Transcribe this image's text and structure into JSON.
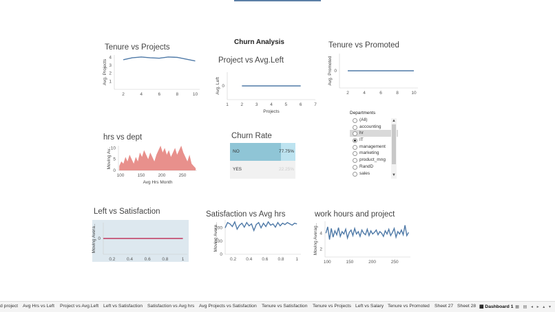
{
  "dashboard_title": "Churn Analysis",
  "sheets": [
    {
      "id": "tenure_projects",
      "title": "Tenure vs Projects"
    },
    {
      "id": "project_avgleft",
      "title": "Project vs Avg.Left"
    },
    {
      "id": "tenure_promoted",
      "title": "Tenure vs Promoted"
    },
    {
      "id": "hrs_dept",
      "title": "hrs vs dept"
    },
    {
      "id": "churn_rate",
      "title": "Churn Rate"
    },
    {
      "id": "left_satisfaction",
      "title": "Left vs Satisfaction"
    },
    {
      "id": "satisfaction_avghrs",
      "title": "Satisfaction vs Avg hrs"
    },
    {
      "id": "work_hours_project",
      "title": "work hours and project"
    }
  ],
  "churn_table": {
    "rows": [
      {
        "label": "NO",
        "value": "77.75%",
        "fraction": 0.7775
      },
      {
        "label": "YES",
        "value": "22.25%",
        "fraction": 0.2225
      }
    ]
  },
  "filter": {
    "title": "Departments",
    "items": [
      "(All)",
      "accounting",
      "hr",
      "IT",
      "management",
      "marketing",
      "product_mng",
      "RandD",
      "sales"
    ],
    "selected": "IT",
    "hover": "hr"
  },
  "tabs": [
    "d project",
    "Avg Hrs vs Left",
    "Project vs Avg.Left",
    "Left vs Satisfaction",
    "Satisfaction vs Avg hrs",
    "Avg Projects vs Satisfaction",
    "Tenure vs Satisfaction",
    "Tenure vs Projects",
    "Left vs Salary",
    "Tenure vs Promoted",
    "Sheet 27",
    "Sheet 28",
    "Dashboard 1"
  ],
  "active_tab": "Dashboard 1",
  "colors": {
    "line": "#4e79a7",
    "area": "#e8908c",
    "churn_no": "#8fc5d6",
    "churn_no_light": "#bde3f0",
    "churn_yes": "#f1f1f1",
    "left_bg": "#dde8ef",
    "left_line": "#c0365e"
  },
  "chart_data": [
    {
      "type": "line",
      "title": "Tenure vs Projects",
      "ylabel": "Avg. Projects",
      "x": [
        2,
        3,
        4,
        5,
        6,
        7,
        8,
        10
      ],
      "y": [
        3.7,
        3.95,
        4.05,
        3.95,
        3.9,
        4.05,
        4.0,
        3.55
      ],
      "xticks": [
        2,
        4,
        6,
        8,
        10
      ],
      "yticks": [
        1,
        2,
        3,
        4
      ],
      "ylim": [
        0,
        4.3
      ],
      "xlim": [
        1,
        10.5
      ]
    },
    {
      "type": "line",
      "title": "Project vs Avg.Left",
      "xlabel": "Projects",
      "ylabel": "Avg. Left",
      "x": [
        2,
        3,
        4,
        5,
        6
      ],
      "y": [
        0,
        0,
        0,
        0,
        0
      ],
      "xticks": [
        1,
        2,
        3,
        4,
        5,
        6,
        7
      ],
      "yticks": [
        0
      ],
      "xlim": [
        1,
        7
      ]
    },
    {
      "type": "line",
      "title": "Tenure vs Promoted",
      "ylabel": "Avg. Promoted",
      "x": [
        2,
        3,
        4,
        5,
        6,
        7,
        8,
        10
      ],
      "y": [
        0,
        0,
        0,
        0,
        0,
        0,
        0,
        0
      ],
      "xticks": [
        2,
        4,
        6,
        8,
        10
      ],
      "yticks": [
        0
      ],
      "xlim": [
        1,
        10.5
      ]
    },
    {
      "type": "area",
      "title": "hrs vs dept",
      "xlabel": "Avg Hrs Month",
      "ylabel": "Moving Av..",
      "xticks": [
        100,
        150,
        200,
        250
      ],
      "yticks": [
        0,
        5,
        10
      ],
      "xlim": [
        95,
        285
      ],
      "ylim": [
        0,
        11
      ],
      "x": [
        97,
        102,
        107,
        112,
        117,
        122,
        127,
        132,
        137,
        142,
        147,
        152,
        157,
        162,
        167,
        172,
        177,
        182,
        187,
        192,
        197,
        202,
        207,
        212,
        217,
        222,
        227,
        232,
        237,
        242,
        247,
        252,
        257,
        262,
        267,
        272,
        277,
        282
      ],
      "y": [
        2,
        4,
        3,
        6,
        4,
        7,
        5,
        3,
        6,
        4,
        8,
        6,
        9,
        7,
        5,
        8,
        6,
        4,
        7,
        9,
        11,
        8,
        10,
        7,
        9,
        6,
        8,
        10,
        7,
        9,
        11,
        8,
        6,
        4,
        7,
        3,
        2,
        1
      ]
    },
    {
      "type": "line",
      "title": "Left vs Satisfaction",
      "ylabel": "Moving Avera..",
      "xticks": [
        0.2,
        0.4,
        0.6,
        0.8,
        1.0
      ],
      "yticks": [
        0
      ],
      "xlim": [
        0.1,
        1.05
      ],
      "x": [
        0.1,
        1.0
      ],
      "y": [
        0,
        0
      ]
    },
    {
      "type": "line",
      "title": "Satisfaction vs Avg hrs",
      "ylabel": "Moving Avera..",
      "xticks": [
        0.2,
        0.4,
        0.6,
        0.8,
        1.0
      ],
      "yticks": [
        0,
        100,
        200
      ],
      "ylim": [
        0,
        260
      ],
      "xlim": [
        0.1,
        1.05
      ],
      "x": [
        0.1,
        0.13,
        0.16,
        0.19,
        0.22,
        0.25,
        0.28,
        0.31,
        0.34,
        0.37,
        0.4,
        0.43,
        0.46,
        0.49,
        0.52,
        0.55,
        0.58,
        0.61,
        0.64,
        0.67,
        0.7,
        0.73,
        0.76,
        0.79,
        0.82,
        0.85,
        0.88,
        0.91,
        0.94,
        0.97,
        1.0
      ],
      "y": [
        200,
        240,
        230,
        210,
        245,
        190,
        220,
        235,
        205,
        240,
        215,
        230,
        180,
        225,
        240,
        200,
        235,
        210,
        245,
        220,
        230,
        205,
        240,
        215,
        235,
        225,
        240,
        230,
        220,
        235,
        230
      ]
    },
    {
      "type": "line",
      "title": "work hours and project",
      "ylabel": "Moving Averag..",
      "xticks": [
        100,
        150,
        200,
        250
      ],
      "yticks": [
        2,
        4
      ],
      "ylim": [
        1,
        5.5
      ],
      "xlim": [
        95,
        285
      ],
      "x": [
        97,
        101,
        105,
        109,
        113,
        117,
        121,
        125,
        129,
        133,
        137,
        141,
        145,
        149,
        153,
        157,
        161,
        165,
        169,
        173,
        177,
        181,
        185,
        189,
        193,
        197,
        201,
        205,
        209,
        213,
        217,
        221,
        225,
        229,
        233,
        237,
        241,
        245,
        249,
        253,
        257,
        261,
        265,
        269,
        273,
        277,
        281
      ],
      "y": [
        4,
        4.8,
        3.2,
        4.6,
        3.5,
        4.3,
        3.8,
        4.7,
        3.6,
        4.2,
        3.9,
        4.5,
        3.4,
        4.1,
        4.4,
        3.7,
        4.6,
        3.9,
        4.2,
        3.6,
        4.4,
        4.0,
        3.8,
        4.5,
        3.7,
        4.3,
        3.9,
        4.1,
        4.4,
        3.8,
        4.2,
        4.0,
        3.6,
        4.3,
        3.9,
        4.5,
        3.7,
        4.1,
        4.6,
        3.5,
        4.2,
        3.9,
        4.4,
        3.8,
        5.0,
        3.7,
        4.1
      ]
    }
  ]
}
